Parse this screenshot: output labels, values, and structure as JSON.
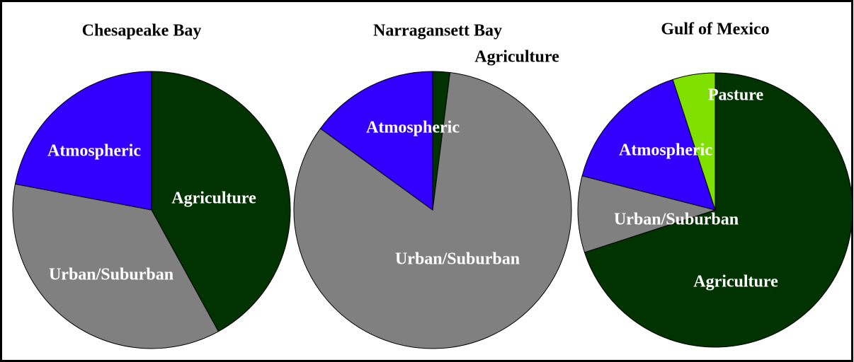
{
  "chart_data": [
    {
      "type": "pie",
      "title": "Chesapeake Bay",
      "categories": [
        "Agriculture",
        "Urban/Suburban",
        "Atmospheric"
      ],
      "values": [
        42,
        36,
        22
      ],
      "colors": [
        "#003300",
        "#808080",
        "#3300ff"
      ]
    },
    {
      "type": "pie",
      "title": "Narragansett Bay",
      "categories": [
        "Agriculture",
        "Urban/Suburban",
        "Atmospheric"
      ],
      "values": [
        2,
        83,
        15
      ],
      "colors": [
        "#003300",
        "#808080",
        "#3300ff"
      ]
    },
    {
      "type": "pie",
      "title": "Gulf of Mexico",
      "categories": [
        "Agriculture",
        "Urban/Suburban",
        "Atmospheric",
        "Pasture"
      ],
      "values": [
        70,
        9,
        16,
        5
      ],
      "colors": [
        "#003300",
        "#808080",
        "#3300ff",
        "#80e000"
      ]
    }
  ]
}
